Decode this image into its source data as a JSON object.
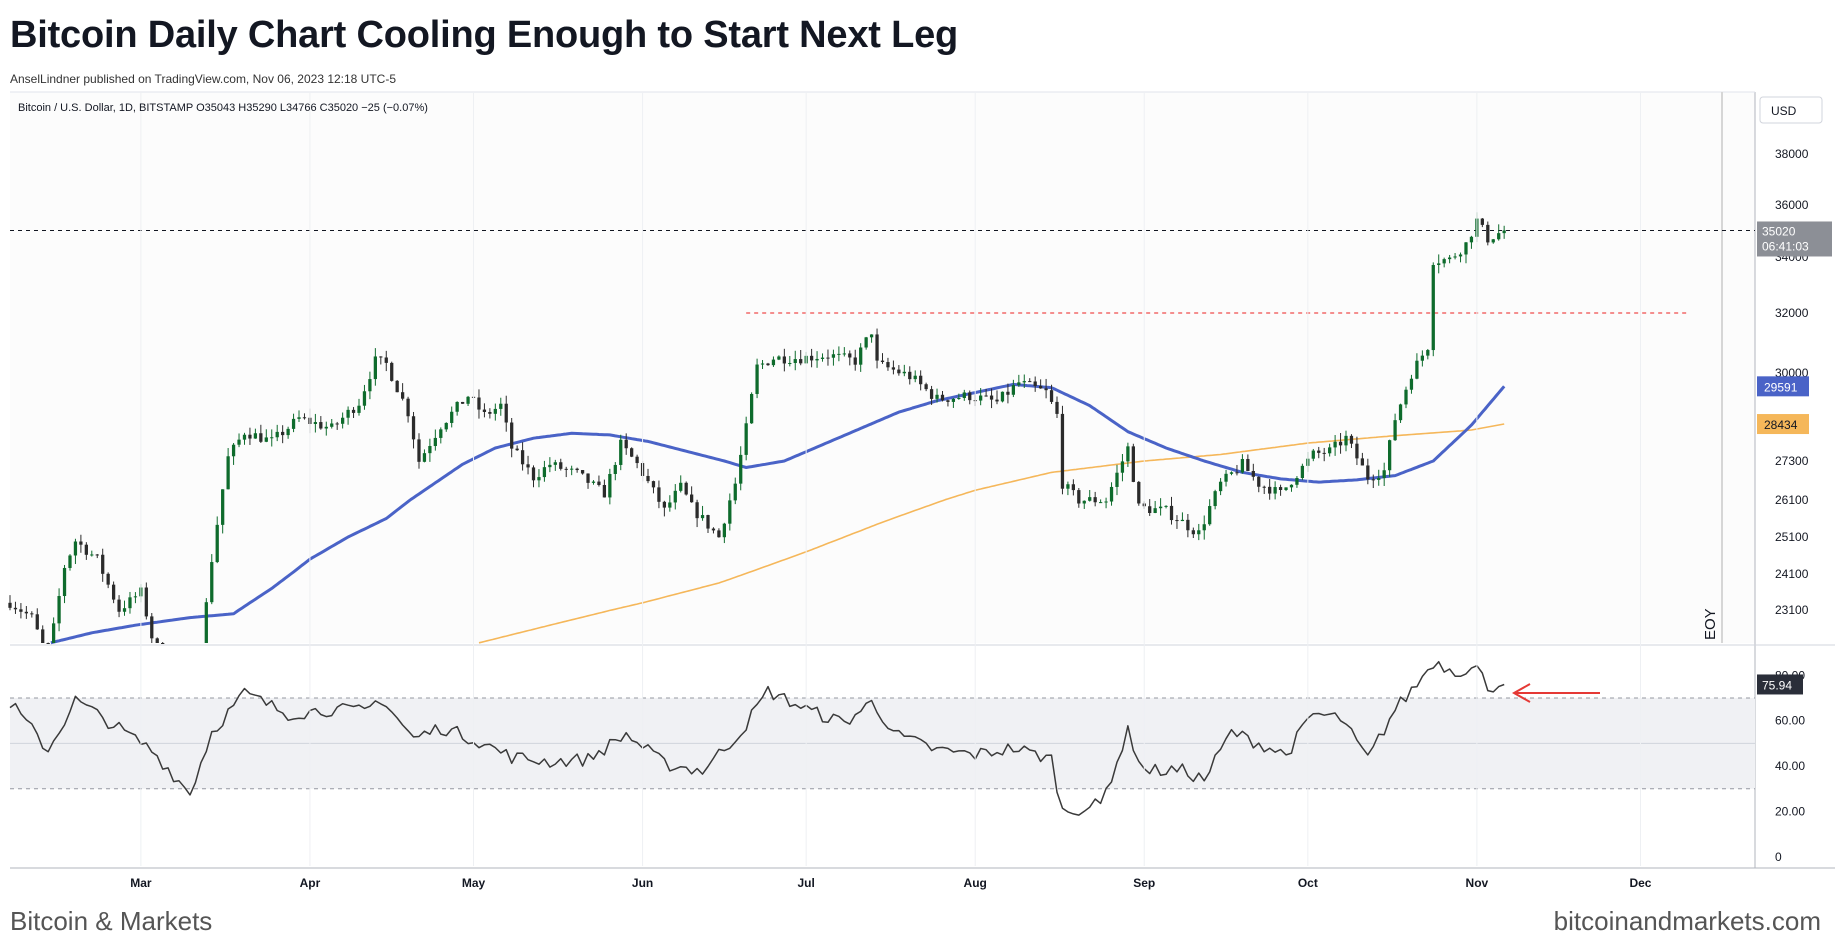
{
  "header": {
    "title": "Bitcoin Daily Chart Cooling Enough to Start Next Leg",
    "byline": "AnselLindner published on TradingView.com, Nov 06, 2023 12:18 UTC-5"
  },
  "legend_text": "Bitcoin / U.S. Dollar, 1D, BITSTAMP  O35043  H35290  L34766  C35020  −25 (−0.07%)",
  "currency_label": "USD",
  "eoy_label": "EOY",
  "footer": {
    "left": "Bitcoin & Markets",
    "right": "bitcoinandmarkets.com"
  },
  "colors": {
    "up": "#0e6b2c",
    "down": "#2b2b2b",
    "ma_fast": "#4a63c7",
    "ma_slow": "#f5b75a",
    "rsi": "#3a3a3a",
    "resistance": "#ef4b4b",
    "arrow": "#e53935",
    "band_fill": "#f0f1f4"
  },
  "chart_data": [
    {
      "type": "candlestick",
      "ylabel": "USD",
      "ylim": [
        22100,
        39700
      ],
      "y_ticks": [
        "38000",
        "36000",
        "34000",
        "32000",
        "30000",
        "27300",
        "26100",
        "25100",
        "24100",
        "23100"
      ],
      "x_ticks": [
        "Mar",
        "Apr",
        "May",
        "Jun",
        "Jul",
        "Aug",
        "Sep",
        "Oct",
        "Nov",
        "Dec"
      ],
      "x_range": [
        "2023-02-05",
        "2023-12-22"
      ],
      "last_price": {
        "value": "35020",
        "countdown": "06:41:03"
      },
      "resistance": {
        "value": 32000,
        "from": "2023-06-20",
        "to": "2023-12-10"
      },
      "ma_fast": {
        "name": "",
        "last_label": "29591"
      },
      "ma_slow": {
        "name": "",
        "last_label": "28434"
      },
      "price_anchors": [
        [
          "2023-02-05",
          23300
        ],
        [
          "2023-02-09",
          22900
        ],
        [
          "2023-02-12",
          21800
        ],
        [
          "2023-02-15",
          24300
        ],
        [
          "2023-02-17",
          25000
        ],
        [
          "2023-02-21",
          24500
        ],
        [
          "2023-02-25",
          23100
        ],
        [
          "2023-03-01",
          23600
        ],
        [
          "2023-03-03",
          22400
        ],
        [
          "2023-03-09",
          20400
        ],
        [
          "2023-03-10",
          20000
        ],
        [
          "2023-03-12",
          22000
        ],
        [
          "2023-03-14",
          24500
        ],
        [
          "2023-03-17",
          27400
        ],
        [
          "2023-03-20",
          28200
        ],
        [
          "2023-03-25",
          27900
        ],
        [
          "2023-03-30",
          28600
        ],
        [
          "2023-04-05",
          28300
        ],
        [
          "2023-04-10",
          29100
        ],
        [
          "2023-04-13",
          30400
        ],
        [
          "2023-04-15",
          30300
        ],
        [
          "2023-04-19",
          28800
        ],
        [
          "2023-04-21",
          27300
        ],
        [
          "2023-04-25",
          28400
        ],
        [
          "2023-04-30",
          29300
        ],
        [
          "2023-05-03",
          28700
        ],
        [
          "2023-05-06",
          29000
        ],
        [
          "2023-05-08",
          27700
        ],
        [
          "2023-05-12",
          26800
        ],
        [
          "2023-05-15",
          27200
        ],
        [
          "2023-05-20",
          26900
        ],
        [
          "2023-05-25",
          26300
        ],
        [
          "2023-05-28",
          27800
        ],
        [
          "2023-05-31",
          27200
        ],
        [
          "2023-06-05",
          25800
        ],
        [
          "2023-06-08",
          26500
        ],
        [
          "2023-06-10",
          25900
        ],
        [
          "2023-06-15",
          25100
        ],
        [
          "2023-06-18",
          26600
        ],
        [
          "2023-06-20",
          28300
        ],
        [
          "2023-06-22",
          30200
        ],
        [
          "2023-06-25",
          30500
        ],
        [
          "2023-06-30",
          30500
        ],
        [
          "2023-07-05",
          30600
        ],
        [
          "2023-07-10",
          30400
        ],
        [
          "2023-07-13",
          31400
        ],
        [
          "2023-07-14",
          30300
        ],
        [
          "2023-07-20",
          29900
        ],
        [
          "2023-07-25",
          29200
        ],
        [
          "2023-07-31",
          29300
        ],
        [
          "2023-08-05",
          29100
        ],
        [
          "2023-08-09",
          29700
        ],
        [
          "2023-08-14",
          29400
        ],
        [
          "2023-08-16",
          28700
        ],
        [
          "2023-08-17",
          26600
        ],
        [
          "2023-08-20",
          26100
        ],
        [
          "2023-08-25",
          26100
        ],
        [
          "2023-08-29",
          27700
        ],
        [
          "2023-08-31",
          25900
        ],
        [
          "2023-09-05",
          25800
        ],
        [
          "2023-09-11",
          25200
        ],
        [
          "2023-09-15",
          26600
        ],
        [
          "2023-09-19",
          27200
        ],
        [
          "2023-09-22",
          26600
        ],
        [
          "2023-09-26",
          26300
        ],
        [
          "2023-09-29",
          26900
        ],
        [
          "2023-10-02",
          27500
        ],
        [
          "2023-10-05",
          27600
        ],
        [
          "2023-10-08",
          28000
        ],
        [
          "2023-10-12",
          26800
        ],
        [
          "2023-10-15",
          27000
        ],
        [
          "2023-10-17",
          28600
        ],
        [
          "2023-10-20",
          30000
        ],
        [
          "2023-10-23",
          30900
        ],
        [
          "2023-10-24",
          33900
        ],
        [
          "2023-10-27",
          33900
        ],
        [
          "2023-10-30",
          34500
        ],
        [
          "2023-11-01",
          35400
        ],
        [
          "2023-11-03",
          34700
        ],
        [
          "2023-11-06",
          35020
        ]
      ],
      "ma_fast_points": [
        [
          "2023-02-10",
          22150
        ],
        [
          "2023-02-20",
          22500
        ],
        [
          "2023-02-28",
          22700
        ],
        [
          "2023-03-10",
          22900
        ],
        [
          "2023-03-18",
          23000
        ],
        [
          "2023-03-25",
          23700
        ],
        [
          "2023-04-01",
          24500
        ],
        [
          "2023-04-08",
          25100
        ],
        [
          "2023-04-15",
          25600
        ],
        [
          "2023-04-22",
          26400
        ],
        [
          "2023-04-29",
          27200
        ],
        [
          "2023-05-05",
          27700
        ],
        [
          "2023-05-12",
          28000
        ],
        [
          "2023-05-19",
          28150
        ],
        [
          "2023-05-26",
          28100
        ],
        [
          "2023-06-02",
          27900
        ],
        [
          "2023-06-09",
          27600
        ],
        [
          "2023-06-16",
          27300
        ],
        [
          "2023-06-20",
          27100
        ],
        [
          "2023-06-27",
          27300
        ],
        [
          "2023-07-04",
          27800
        ],
        [
          "2023-07-11",
          28300
        ],
        [
          "2023-07-18",
          28800
        ],
        [
          "2023-07-25",
          29150
        ],
        [
          "2023-08-01",
          29400
        ],
        [
          "2023-08-08",
          29650
        ],
        [
          "2023-08-15",
          29550
        ],
        [
          "2023-08-22",
          29000
        ],
        [
          "2023-08-29",
          28200
        ],
        [
          "2023-09-05",
          27700
        ],
        [
          "2023-09-12",
          27300
        ],
        [
          "2023-09-19",
          26950
        ],
        [
          "2023-09-26",
          26750
        ],
        [
          "2023-10-03",
          26650
        ],
        [
          "2023-10-10",
          26720
        ],
        [
          "2023-10-17",
          26850
        ],
        [
          "2023-10-24",
          27300
        ],
        [
          "2023-10-31",
          28400
        ],
        [
          "2023-11-06",
          29591
        ]
      ],
      "ma_slow_points": [
        [
          "2023-04-20",
          21850
        ],
        [
          "2023-05-01",
          22200
        ],
        [
          "2023-05-15",
          22700
        ],
        [
          "2023-06-01",
          23300
        ],
        [
          "2023-06-15",
          23850
        ],
        [
          "2023-07-01",
          24700
        ],
        [
          "2023-07-15",
          25500
        ],
        [
          "2023-08-01",
          26400
        ],
        [
          "2023-08-15",
          26950
        ],
        [
          "2023-09-01",
          27300
        ],
        [
          "2023-09-15",
          27500
        ],
        [
          "2023-10-01",
          27850
        ],
        [
          "2023-10-15",
          28050
        ],
        [
          "2023-10-31",
          28250
        ],
        [
          "2023-11-06",
          28434
        ]
      ]
    },
    {
      "type": "line",
      "name": "",
      "ylim": [
        -4,
        92
      ],
      "y_ticks": [
        "80.00",
        "60.00",
        "40.00",
        "20.00",
        "0"
      ],
      "band": [
        30,
        70
      ],
      "last_label": "75.94",
      "rsi_anchors": [
        [
          "2023-02-05",
          68
        ],
        [
          "2023-02-12",
          47
        ],
        [
          "2023-02-17",
          69
        ],
        [
          "2023-02-24",
          58
        ],
        [
          "2023-03-03",
          47
        ],
        [
          "2023-03-10",
          28
        ],
        [
          "2023-03-14",
          55
        ],
        [
          "2023-03-20",
          72
        ],
        [
          "2023-03-28",
          63
        ],
        [
          "2023-04-05",
          65
        ],
        [
          "2023-04-11",
          64
        ],
        [
          "2023-04-14",
          70
        ],
        [
          "2023-04-20",
          52
        ],
        [
          "2023-04-25",
          57
        ],
        [
          "2023-05-01",
          52
        ],
        [
          "2023-05-08",
          44
        ],
        [
          "2023-05-15",
          42
        ],
        [
          "2023-05-22",
          43
        ],
        [
          "2023-05-29",
          54
        ],
        [
          "2023-06-05",
          41
        ],
        [
          "2023-06-12",
          38
        ],
        [
          "2023-06-19",
          55
        ],
        [
          "2023-06-24",
          73
        ],
        [
          "2023-07-02",
          64
        ],
        [
          "2023-07-08",
          59
        ],
        [
          "2023-07-13",
          68
        ],
        [
          "2023-07-18",
          53
        ],
        [
          "2023-07-25",
          47
        ],
        [
          "2023-08-01",
          45
        ],
        [
          "2023-08-08",
          48
        ],
        [
          "2023-08-15",
          43
        ],
        [
          "2023-08-17",
          20
        ],
        [
          "2023-08-24",
          23
        ],
        [
          "2023-08-29",
          55
        ],
        [
          "2023-09-01",
          38
        ],
        [
          "2023-09-08",
          38
        ],
        [
          "2023-09-12",
          34
        ],
        [
          "2023-09-17",
          55
        ],
        [
          "2023-09-22",
          50
        ],
        [
          "2023-09-27",
          45
        ],
        [
          "2023-10-02",
          63
        ],
        [
          "2023-10-07",
          61
        ],
        [
          "2023-10-12",
          43
        ],
        [
          "2023-10-17",
          65
        ],
        [
          "2023-10-21",
          76
        ],
        [
          "2023-10-24",
          86
        ],
        [
          "2023-10-28",
          82
        ],
        [
          "2023-11-01",
          83
        ],
        [
          "2023-11-03",
          75
        ],
        [
          "2023-11-06",
          75.94
        ]
      ]
    }
  ]
}
